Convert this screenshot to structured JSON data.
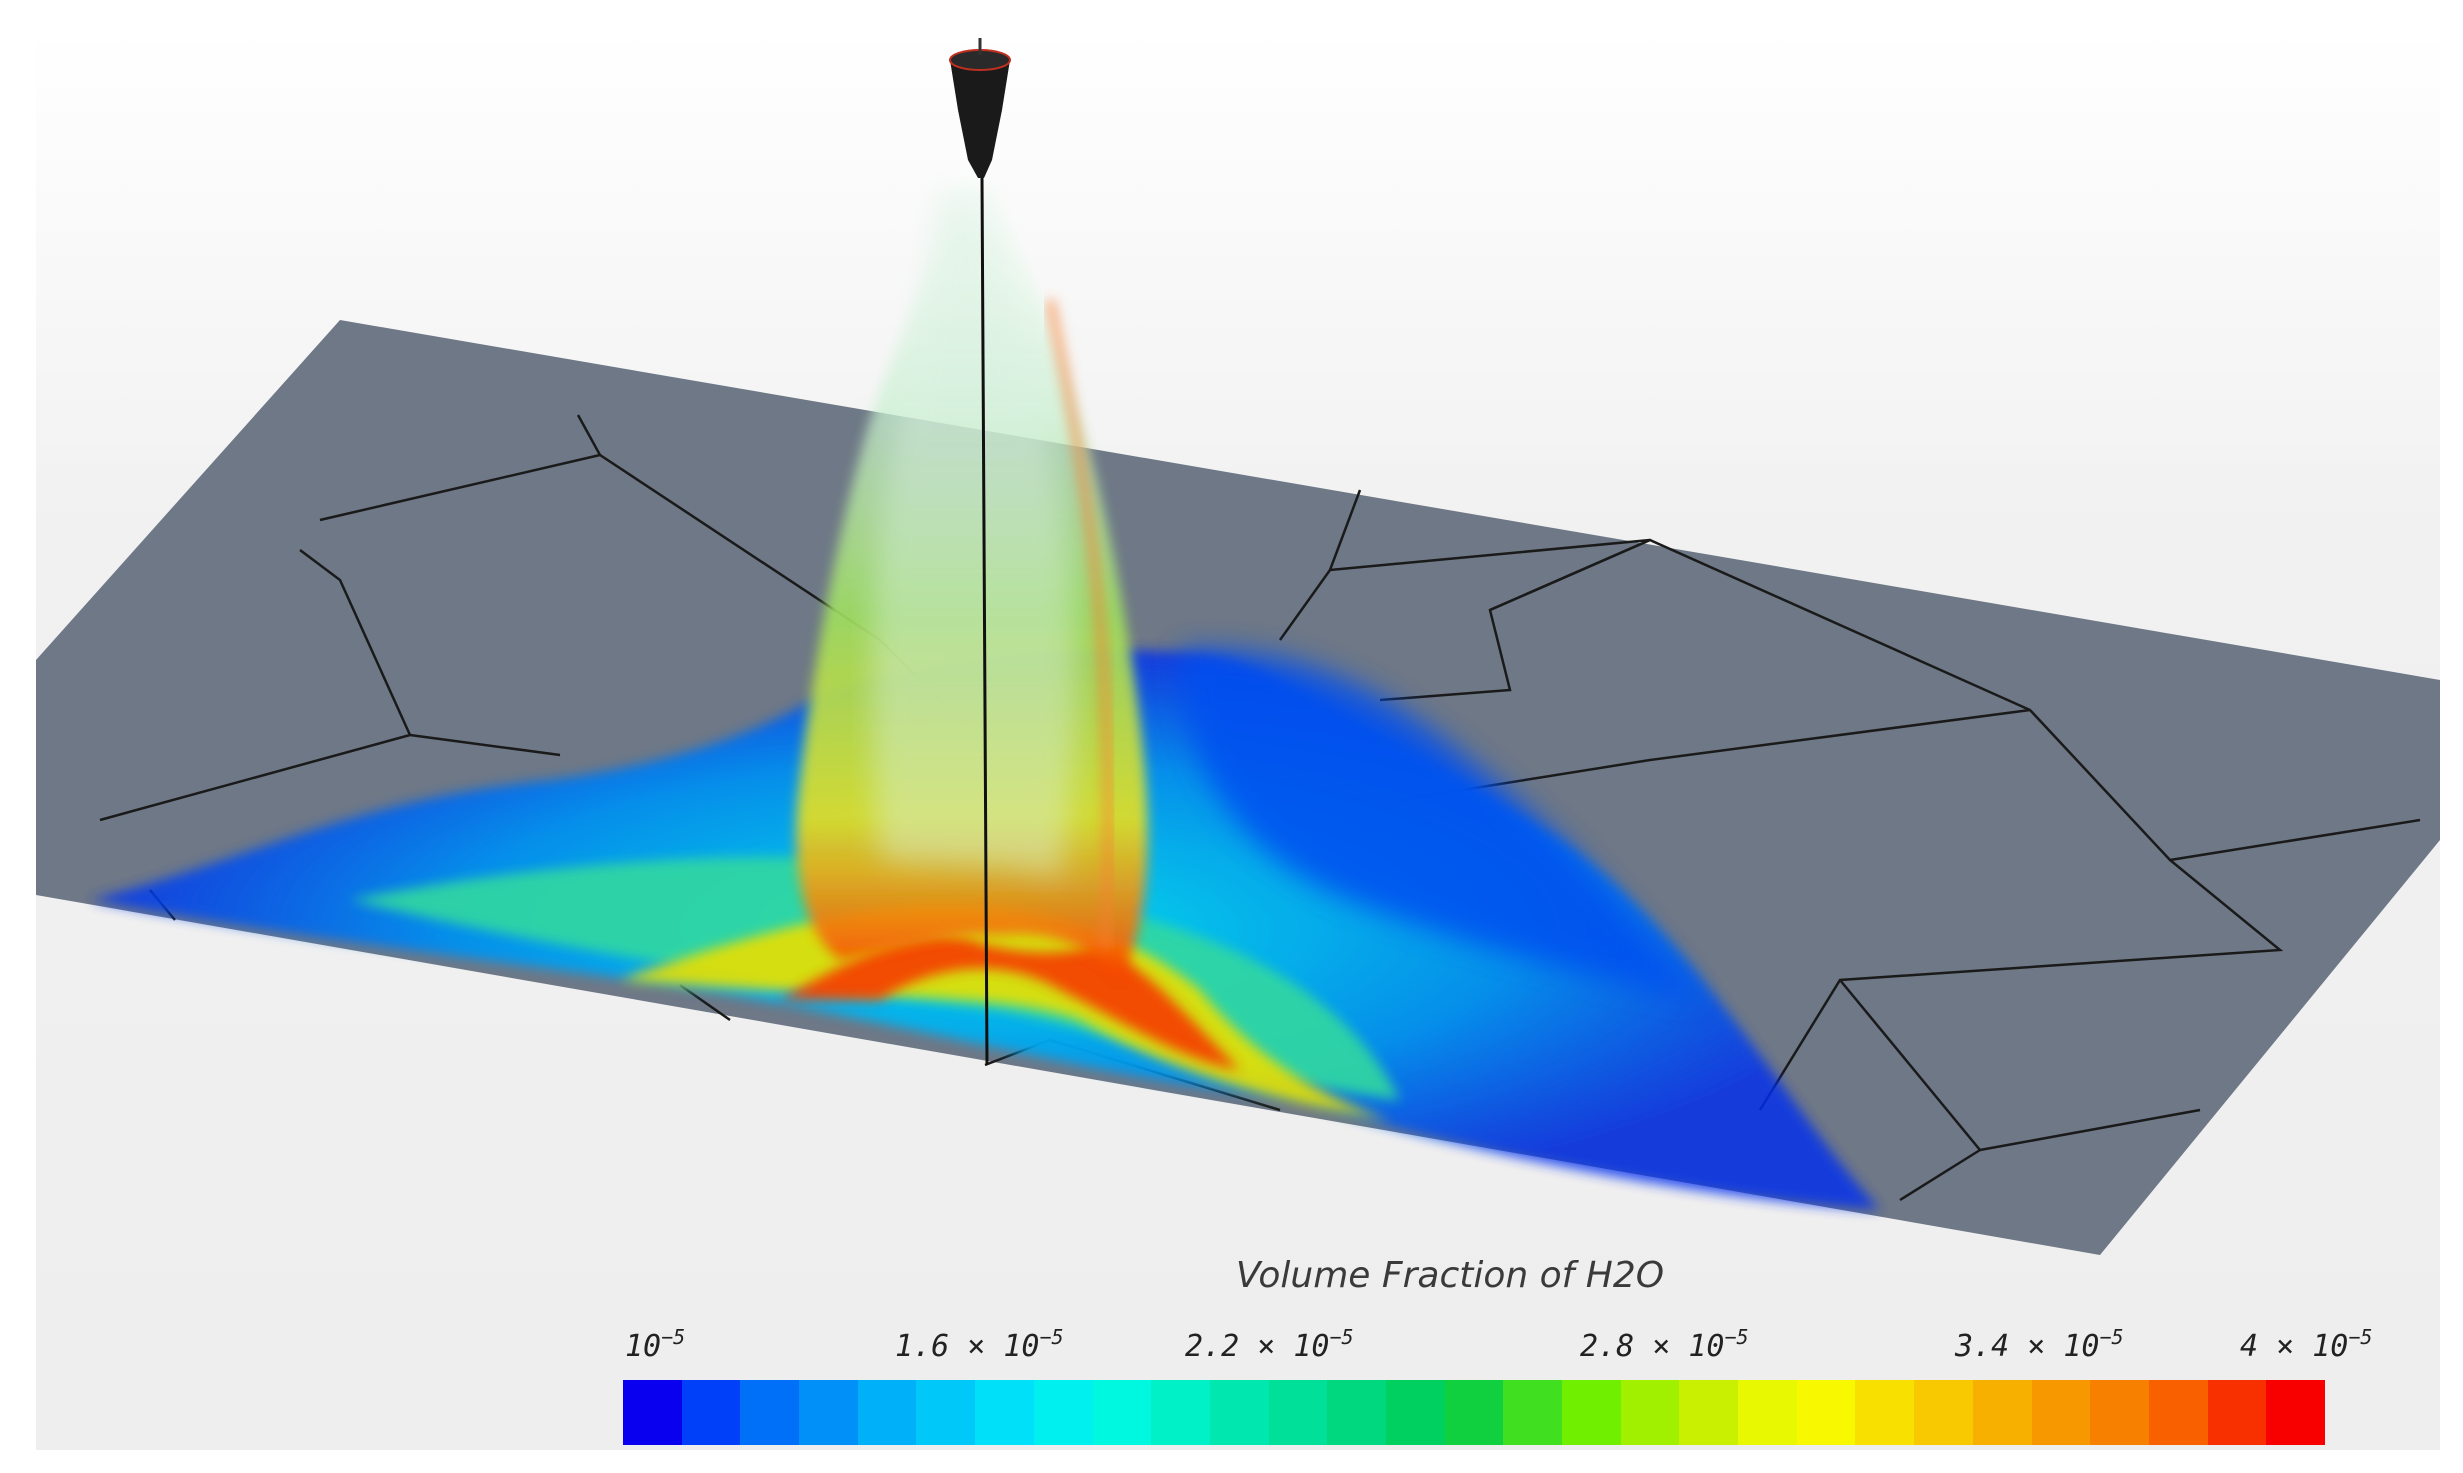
{
  "legend": {
    "title": "Volume Fraction of H2O",
    "ticks": [
      {
        "mantissa": "",
        "exponent": "−5",
        "label_prefix": "10"
      },
      {
        "mantissa": "1.6 × ",
        "exponent": "−5",
        "label_prefix": "10"
      },
      {
        "mantissa": "2.2 × ",
        "exponent": "−5",
        "label_prefix": "10"
      },
      {
        "mantissa": "2.8 × ",
        "exponent": "−5",
        "label_prefix": "10"
      },
      {
        "mantissa": "3.4 × ",
        "exponent": "−5",
        "label_prefix": "10"
      },
      {
        "mantissa": "4 × ",
        "exponent": "−5",
        "label_prefix": "10"
      }
    ],
    "colors": [
      "#0a00f0",
      "#0040f8",
      "#0070f8",
      "#0090f8",
      "#00b0f8",
      "#00c8f8",
      "#00e0f8",
      "#00f0f0",
      "#00f8e0",
      "#00f0c8",
      "#00e8b0",
      "#00e098",
      "#00d880",
      "#00d060",
      "#10d040",
      "#40e020",
      "#70f000",
      "#a0f000",
      "#c8f000",
      "#e8f800",
      "#f8f800",
      "#f8e000",
      "#f8c800",
      "#f8b000",
      "#f89800",
      "#f88000",
      "#f86000",
      "#f83000",
      "#f80000"
    ]
  },
  "scene": {
    "plate_color": "#6e7886",
    "background_color": "#f2f2f2"
  }
}
